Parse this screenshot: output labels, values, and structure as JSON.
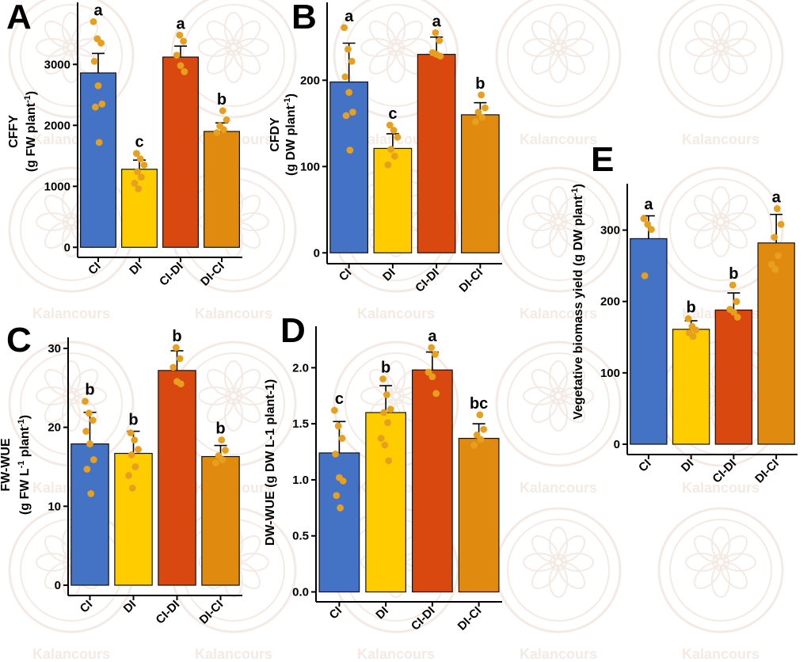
{
  "watermark": {
    "text": "Kalancours",
    "color": "#ecd9cf"
  },
  "colors": {
    "CI": "#4472c4",
    "DI": "#ffcc00",
    "CI-DI": "#d9480f",
    "DI-CI": "#e08a10",
    "point": "#e6a01e",
    "errorbar": "#000000"
  },
  "chart_data": [
    {
      "panel": "A",
      "type": "bar",
      "ylabel_line1": "CFFY",
      "ylabel_line2_pre": "(g FW plant",
      "ylabel_line2_sup": "-1",
      "ylabel_line2_post": ")",
      "categories": [
        "CI",
        "DI",
        "CI-DI",
        "DI-CI"
      ],
      "values": [
        2860,
        1280,
        3120,
        1900
      ],
      "errors": [
        320,
        150,
        180,
        140
      ],
      "letters": [
        "a",
        "c",
        "a",
        "b"
      ],
      "points": [
        [
          3700,
          3420,
          3350,
          3050,
          2650,
          2350,
          2300,
          1720
        ],
        [
          1540,
          1450,
          1350,
          1240,
          1150,
          1050,
          960
        ],
        [
          3480,
          3380,
          3150,
          2980,
          2880
        ],
        [
          2240,
          2090,
          1990,
          1930,
          1880
        ]
      ],
      "yticks": [
        0,
        1000,
        2000,
        3000
      ],
      "ylim": [
        -100,
        3900
      ]
    },
    {
      "panel": "B",
      "type": "bar",
      "ylabel_line1": "CFDY",
      "ylabel_line2_pre": "(g DW plant",
      "ylabel_line2_sup": "-1",
      "ylabel_line2_post": ")",
      "categories": [
        "CI",
        "DI",
        "CI-DI",
        "DI-CI"
      ],
      "values": [
        198,
        121,
        230,
        160
      ],
      "errors": [
        45,
        17,
        20,
        14
      ],
      "letters": [
        "a",
        "c",
        "a",
        "b"
      ],
      "points": [
        [
          261,
          236,
          222,
          204,
          186,
          163,
          159,
          119
        ],
        [
          148,
          142,
          134,
          120,
          112,
          102
        ],
        [
          255,
          246,
          232,
          230,
          228
        ],
        [
          183,
          168,
          163,
          157,
          152
        ]
      ],
      "yticks": [
        0,
        100,
        200
      ],
      "ylim": [
        -8,
        282
      ]
    },
    {
      "panel": "C",
      "type": "bar",
      "ylabel_line1": "FW-WUE",
      "ylabel_line2_pre": "(g FW L",
      "ylabel_line2_sup": "-1",
      "ylabel_line2_post": " plant",
      "ylabel_line2_sup2": "-1",
      "ylabel_line2_end": ")",
      "categories": [
        "CI",
        "DI",
        "CI-DI",
        "DI-CI"
      ],
      "values": [
        17.9,
        16.7,
        27.2,
        16.3
      ],
      "errors": [
        4.0,
        2.8,
        2.5,
        1.4
      ],
      "letters": [
        "b",
        "b",
        "b",
        "b"
      ],
      "points": [
        [
          23.3,
          21.8,
          20.9,
          19.5,
          17.9,
          15.9,
          14.7,
          11.6
        ],
        [
          19.3,
          18.4,
          17.2,
          16.5,
          15.0,
          13.9,
          12.3
        ],
        [
          30.1,
          28.7,
          27.6,
          25.8,
          25.5
        ],
        [
          18.4,
          17.1,
          16.4,
          15.9,
          15.5
        ]
      ],
      "yticks": [
        0,
        10,
        20,
        30
      ],
      "ylim": [
        -0.9,
        31.4
      ]
    },
    {
      "panel": "D",
      "type": "bar",
      "ylabel_line1": "DW-WUE (g DW L-1 plant-1)",
      "categories": [
        "CI",
        "DI",
        "CI-DI",
        "DI-CI"
      ],
      "values": [
        1.24,
        1.6,
        1.98,
        1.37
      ],
      "errors": [
        0.28,
        0.24,
        0.16,
        0.13
      ],
      "letters": [
        "c",
        "b",
        "a",
        "bc"
      ],
      "points": [
        [
          1.62,
          1.48,
          1.37,
          1.23,
          1.02,
          0.99,
          0.86,
          0.75
        ],
        [
          1.9,
          1.76,
          1.63,
          1.6,
          1.51,
          1.37,
          1.31,
          1.17
        ],
        [
          2.18,
          2.12,
          1.96,
          1.92,
          1.77
        ],
        [
          1.58,
          1.45,
          1.4,
          1.36,
          1.31
        ]
      ],
      "yticks": [
        0.0,
        0.5,
        1.0,
        1.5,
        2.0
      ],
      "ylim": [
        -0.06,
        2.37
      ]
    },
    {
      "panel": "E",
      "type": "bar",
      "ylabel_line1_pre": "Vegetative biomass yield (g DW plant",
      "ylabel_line1_sup": "-1",
      "ylabel_line1_post": ")",
      "categories": [
        "CI",
        "DI",
        "CI-DI",
        "DI-CI"
      ],
      "values": [
        288,
        161,
        188,
        282
      ],
      "errors": [
        32,
        12,
        24,
        40
      ],
      "letters": [
        "a",
        "b",
        "b",
        "a"
      ],
      "points": [
        [
          316,
          308,
          301,
          236
        ],
        [
          176,
          165,
          160,
          156,
          151
        ],
        [
          223,
          200,
          189,
          185,
          178
        ],
        [
          330,
          308,
          290,
          264,
          252,
          245
        ]
      ],
      "yticks": [
        0,
        100,
        200,
        300
      ],
      "ylim": [
        -10,
        365
      ]
    }
  ]
}
